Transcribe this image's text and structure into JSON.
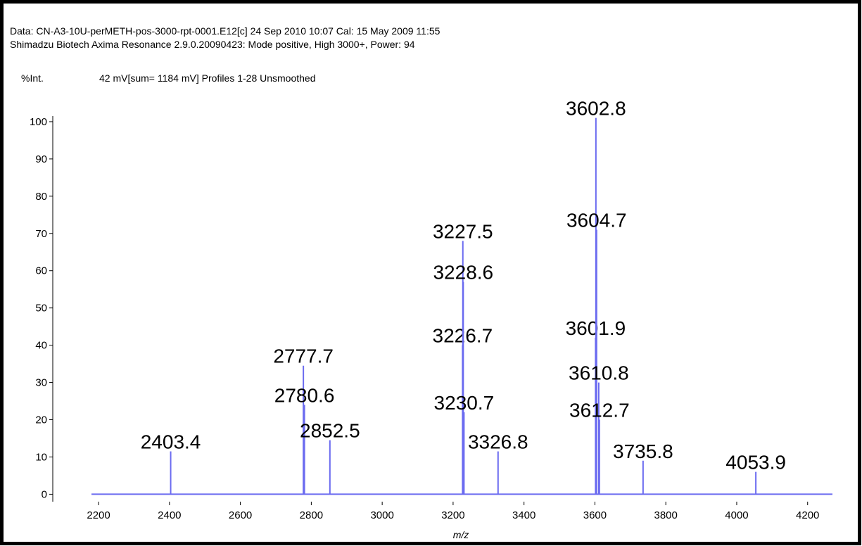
{
  "chart_data": {
    "type": "stick",
    "title": "Data: CN-A3-10U-perMETH-pos-3000-rpt-0001.E12[c] 24 Sep 2010 10:07 Cal: 15 May 2009 11:55",
    "subtitle": "Shimadzu Biotech Axima Resonance 2.9.0.20090423: Mode positive, High 3000+, Power: 94",
    "y_label": "%Int.",
    "annotation": "42 mV[sum= 1184 mV]  Profiles 1-28 Unsmoothed",
    "x_label": "m/z",
    "color": "#6b6bf0",
    "x": [
      2403.4,
      2777.7,
      2780.6,
      2852.5,
      3226.7,
      3227.5,
      3228.6,
      3230.7,
      3326.8,
      3601.9,
      3602.8,
      3604.7,
      3610.8,
      3612.7,
      3735.8,
      4053.9
    ],
    "values": [
      11.5,
      34.5,
      24,
      14.5,
      40,
      68,
      57,
      22,
      11.5,
      42,
      101,
      71,
      30,
      20,
      9,
      6
    ],
    "xlim": [
      2180,
      4270
    ],
    "ylim": [
      -2,
      101.5
    ],
    "xticks": [
      2200,
      2400,
      2600,
      2800,
      3000,
      3200,
      3400,
      3600,
      3800,
      4000,
      4200
    ],
    "yticks": [
      0,
      10,
      20,
      30,
      40,
      50,
      60,
      70,
      80,
      90,
      100
    ]
  }
}
